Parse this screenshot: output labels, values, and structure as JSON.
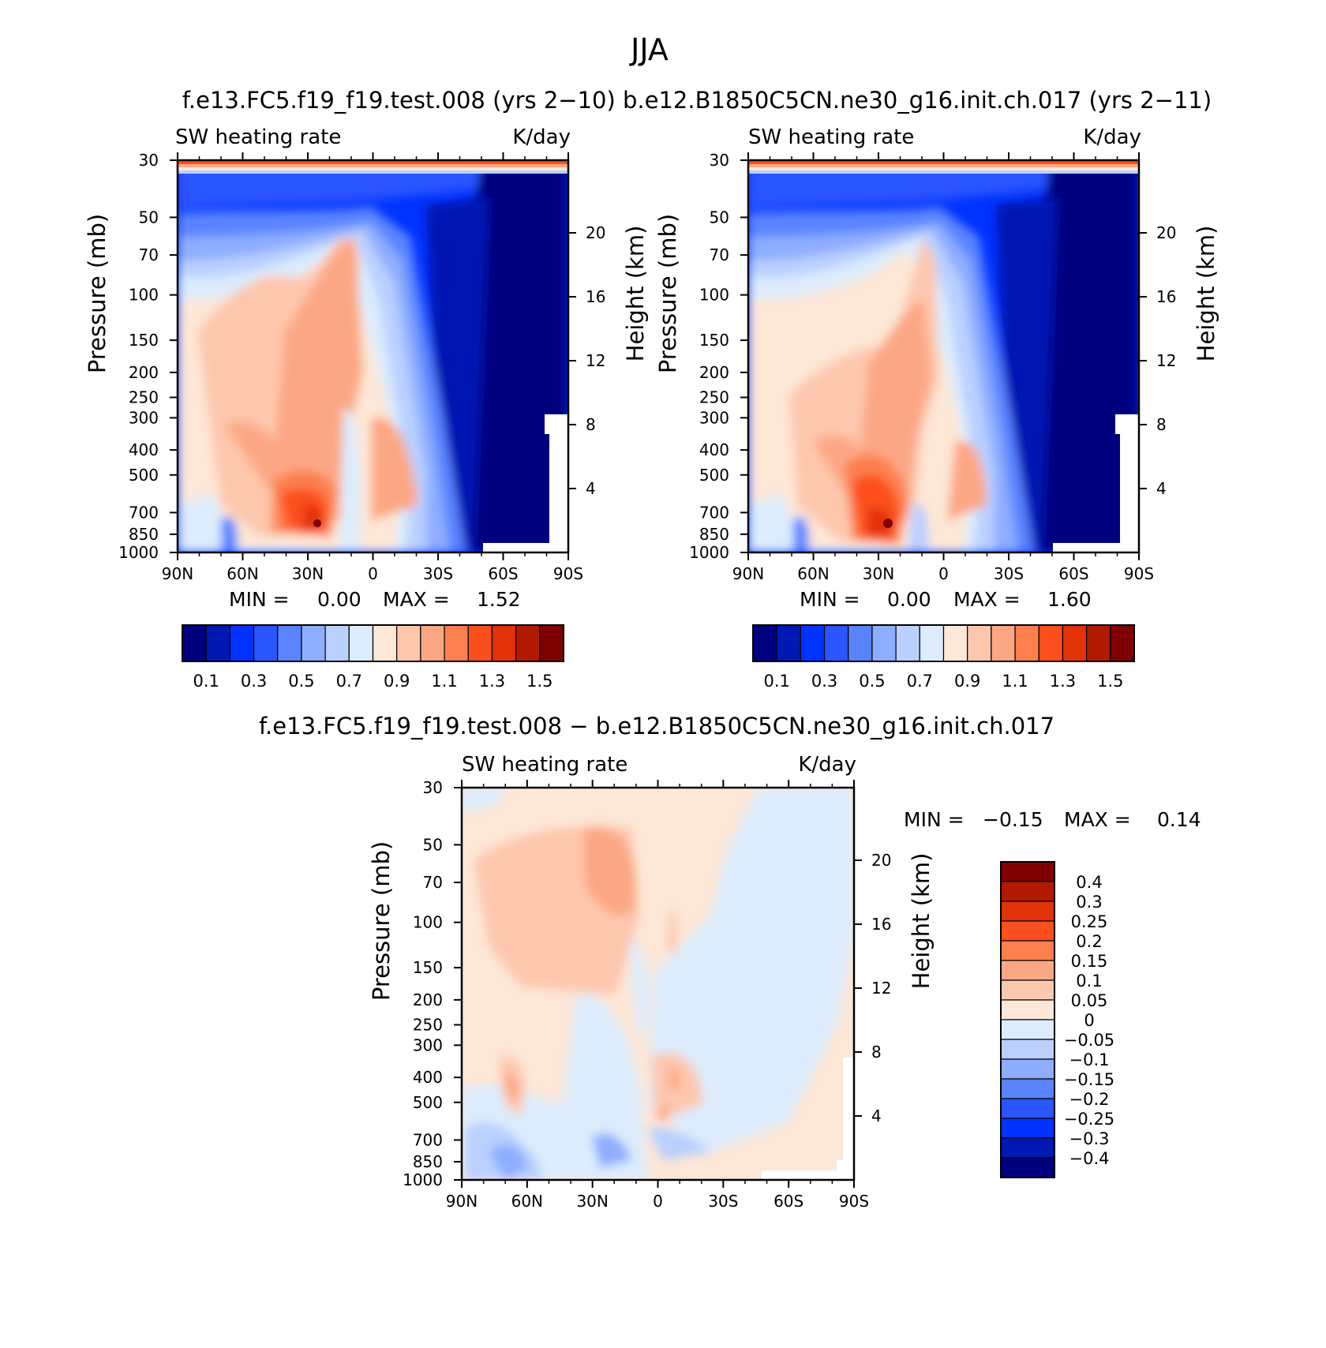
{
  "figure": {
    "season": "JJA",
    "top_title": "f.e13.FC5.f19_f19.test.008 (yrs 2−10)  b.e12.B1850C5CN.ne30_g16.init.ch.017 (yrs 2−11)",
    "bottom_title": "f.e13.FC5.f19_f19.test.008 − b.e12.B1850C5CN.ne30_g16.init.ch.017"
  },
  "chart_data": [
    {
      "type": "heatmap",
      "id": "left",
      "variable": "SW heating rate",
      "units": "K/day",
      "ylabel": "Pressure (mb)",
      "y2label": "Height (km)",
      "x_ticks": [
        "90N",
        "60N",
        "30N",
        "0",
        "30S",
        "60S",
        "90S"
      ],
      "p_ticks": [
        "30",
        "50",
        "70",
        "100",
        "150",
        "200",
        "250",
        "300",
        "400",
        "500",
        "700",
        "850",
        "1000"
      ],
      "h_ticks": [
        "20",
        "16",
        "12",
        "8",
        "4"
      ],
      "min_label": "MIN =",
      "min_value": "0.00",
      "max_label": "MAX =",
      "max_value": "1.52",
      "colorbar_labels": [
        "0.1",
        "0.3",
        "0.5",
        "0.7",
        "0.9",
        "1.1",
        "1.3",
        "1.5"
      ],
      "colors": [
        "#00007f",
        "#0019b2",
        "#0033ff",
        "#2b55ff",
        "#5a84ff",
        "#8eadff",
        "#bad0ff",
        "#dcecfc",
        "#fde7d6",
        "#fdc7ae",
        "#fca784",
        "#fc7f4e",
        "#fc4f1d",
        "#e23207",
        "#b21a00",
        "#7f0000"
      ]
    },
    {
      "type": "heatmap",
      "id": "right",
      "variable": "SW heating rate",
      "units": "K/day",
      "ylabel": "Pressure (mb)",
      "y2label": "Height (km)",
      "x_ticks": [
        "90N",
        "60N",
        "30N",
        "0",
        "30S",
        "60S",
        "90S"
      ],
      "p_ticks": [
        "30",
        "50",
        "70",
        "100",
        "150",
        "200",
        "250",
        "300",
        "400",
        "500",
        "700",
        "850",
        "1000"
      ],
      "h_ticks": [
        "20",
        "16",
        "12",
        "8",
        "4"
      ],
      "min_label": "MIN =",
      "min_value": "0.00",
      "max_label": "MAX =",
      "max_value": "1.60",
      "colorbar_labels": [
        "0.1",
        "0.3",
        "0.5",
        "0.7",
        "0.9",
        "1.1",
        "1.3",
        "1.5"
      ],
      "colors": [
        "#00007f",
        "#0019b2",
        "#0033ff",
        "#2b55ff",
        "#5a84ff",
        "#8eadff",
        "#bad0ff",
        "#dcecfc",
        "#fde7d6",
        "#fdc7ae",
        "#fca784",
        "#fc7f4e",
        "#fc4f1d",
        "#e23207",
        "#b21a00",
        "#7f0000"
      ]
    },
    {
      "type": "heatmap",
      "id": "diff",
      "variable": "SW heating rate",
      "units": "K/day",
      "ylabel": "Pressure (mb)",
      "y2label": "Height (km)",
      "x_ticks": [
        "90N",
        "60N",
        "30N",
        "0",
        "30S",
        "60S",
        "90S"
      ],
      "p_ticks": [
        "30",
        "50",
        "70",
        "100",
        "150",
        "200",
        "250",
        "300",
        "400",
        "500",
        "700",
        "850",
        "1000"
      ],
      "h_ticks": [
        "20",
        "16",
        "12",
        "8",
        "4"
      ],
      "min_label": "MIN =",
      "min_value": "−0.15",
      "max_label": "MAX =",
      "max_value": "0.14",
      "colorbar_labels": [
        "0.4",
        "0.3",
        "0.25",
        "0.2",
        "0.15",
        "0.1",
        "0.05",
        "0",
        "−0.05",
        "−0.1",
        "−0.15",
        "−0.2",
        "−0.25",
        "−0.3",
        "−0.4"
      ],
      "colors": [
        "#7f0000",
        "#b21a00",
        "#e23207",
        "#fc4f1d",
        "#fc7f4e",
        "#fca784",
        "#fdc7ae",
        "#fde7d6",
        "#dcecfc",
        "#bad0ff",
        "#8eadff",
        "#5a84ff",
        "#2b55ff",
        "#0033ff",
        "#0019b2",
        "#00007f"
      ]
    }
  ]
}
